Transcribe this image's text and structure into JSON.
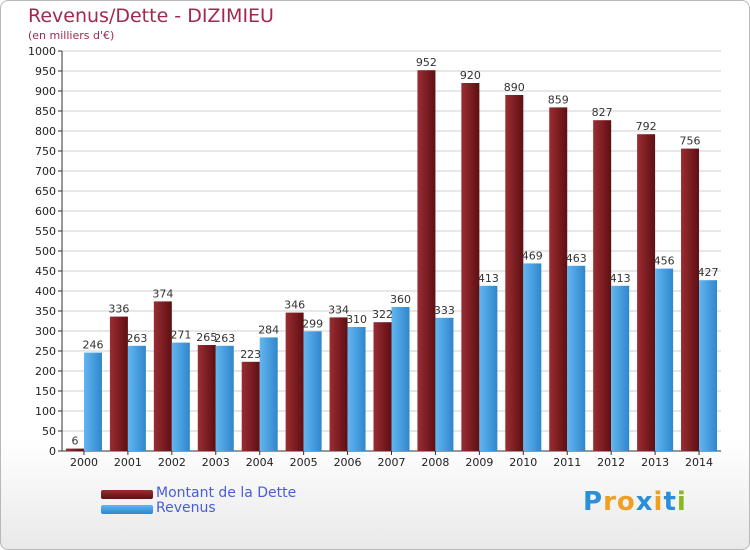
{
  "title": "Revenus/Dette - DIZIMIEU",
  "subtitle": "(en milliers d'€)",
  "colors": {
    "dette": "#7a1a1e",
    "revenus": "#3f9be0",
    "title": "#a0294d",
    "legend_text": "#4a5cdc",
    "grid": "#cfcfcf"
  },
  "legend": [
    {
      "label": "Montant de la Dette",
      "color": "#7a1a1e"
    },
    {
      "label": "Revenus",
      "color": "#3f9be0"
    }
  ],
  "logo": {
    "text": "Proxiti",
    "letters": [
      "P",
      "r",
      "o",
      "x",
      "i",
      "t",
      "i"
    ],
    "colors": [
      "#2a8fd6",
      "#f0a020",
      "#f0a020",
      "#2a8fd6",
      "#f0a020",
      "#2a8fd6",
      "#88b820"
    ]
  },
  "chart_data": {
    "type": "bar",
    "categories": [
      "2000",
      "2001",
      "2002",
      "2003",
      "2004",
      "2005",
      "2006",
      "2007",
      "2008",
      "2009",
      "2010",
      "2011",
      "2012",
      "2013",
      "2014"
    ],
    "series": [
      {
        "name": "Montant de la Dette",
        "values": [
          6,
          336,
          374,
          265,
          223,
          346,
          334,
          322,
          952,
          920,
          890,
          859,
          827,
          792,
          756
        ]
      },
      {
        "name": "Revenus",
        "values": [
          246,
          263,
          271,
          263,
          284,
          299,
          310,
          360,
          333,
          413,
          469,
          463,
          413,
          456,
          427
        ]
      }
    ],
    "data_labels": [
      [
        "6",
        "336",
        "374",
        "265",
        "223",
        "346",
        "334",
        "322",
        "952",
        "920",
        "890",
        "859",
        "827",
        "792",
        "756"
      ],
      [
        "246",
        "263",
        "271",
        "263",
        "284",
        "299",
        "310",
        "360",
        "333",
        "413",
        "469",
        "463",
        "413",
        "456",
        "427"
      ]
    ],
    "ylim": [
      0,
      1000
    ],
    "yticks": [
      0,
      50,
      100,
      150,
      200,
      250,
      300,
      350,
      400,
      450,
      500,
      550,
      600,
      650,
      700,
      750,
      800,
      850,
      900,
      950,
      1000
    ],
    "grid": true,
    "legend_position": "bottom-left"
  }
}
